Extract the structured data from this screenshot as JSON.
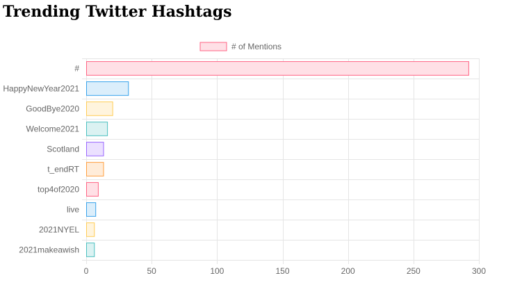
{
  "page": {
    "title": "Trending Twitter Hashtags"
  },
  "chart_data": {
    "type": "bar",
    "orientation": "horizontal",
    "categories": [
      "#",
      "HappyNewYear2021",
      "GoodBye2020",
      "Welcome2021",
      "Scotland",
      "t_endRT",
      "top4of2020",
      "live",
      "2021NYEL",
      "2021makeawish"
    ],
    "series": [
      {
        "name": "# of Mentions",
        "values": [
          292,
          32,
          20,
          16,
          13,
          13,
          9,
          7,
          6,
          6
        ]
      }
    ],
    "colors": {
      "fill": [
        "#ffe0e6",
        "#dbeefb",
        "#fff4dd",
        "#dbf2f2",
        "#ebe0ff",
        "#ffecd9",
        "#ffe0e6",
        "#dbeefb",
        "#fff4dd",
        "#dbf2f2"
      ],
      "border": [
        "#ff6384",
        "#36a2eb",
        "#ffcd56",
        "#4bc0c0",
        "#9966ff",
        "#ff9f40",
        "#ff6384",
        "#36a2eb",
        "#ffcd56",
        "#4bc0c0"
      ]
    },
    "legend_swatch": {
      "fill": "#ffe0e6",
      "border": "#ff6384"
    },
    "xticks": [
      0,
      50,
      100,
      150,
      200,
      250,
      300
    ],
    "xlim": [
      0,
      300
    ],
    "grid": true,
    "legend_position": "top"
  }
}
